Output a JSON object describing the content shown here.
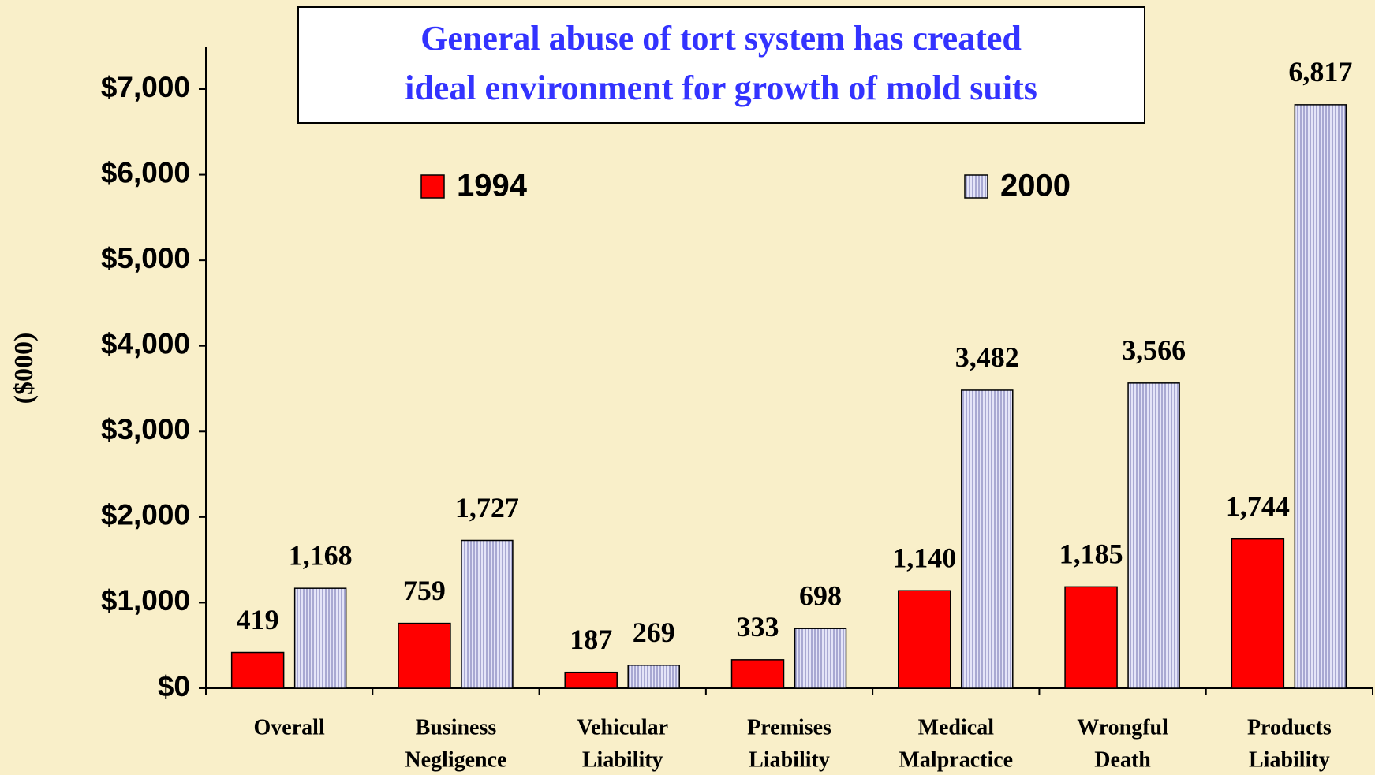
{
  "chart_data": {
    "type": "bar",
    "title": [
      "General abuse of tort system has created",
      "ideal environment for growth of mold suits"
    ],
    "y_label": "($000)",
    "categories": [
      [
        "Overall"
      ],
      [
        "Business",
        "Negligence"
      ],
      [
        "Vehicular",
        "Liability"
      ],
      [
        "Premises",
        "Liability"
      ],
      [
        "Medical",
        "Malpractice"
      ],
      [
        "Wrongful",
        "Death"
      ],
      [
        "Products",
        "Liability"
      ]
    ],
    "series": [
      {
        "name": "1994",
        "color": "#ff0000",
        "values": [
          419,
          759,
          187,
          333,
          1140,
          1185,
          1744
        ],
        "value_labels": [
          "419",
          "759",
          "187",
          "333",
          "1,140",
          "1,185",
          "1,744"
        ]
      },
      {
        "name": "2000",
        "color": "#c8c8f0",
        "values": [
          1168,
          1727,
          269,
          698,
          3482,
          3566,
          6817
        ],
        "value_labels": [
          "1,168",
          "1,727",
          "269",
          "698",
          "3,482",
          "3,566",
          "6,817"
        ]
      }
    ],
    "ylim": [
      0,
      7000
    ],
    "yticks": [
      {
        "value": 0,
        "label": "$0"
      },
      {
        "value": 1000,
        "label": "$1,000"
      },
      {
        "value": 2000,
        "label": "$2,000"
      },
      {
        "value": 3000,
        "label": "$3,000"
      },
      {
        "value": 4000,
        "label": "$4,000"
      },
      {
        "value": 5000,
        "label": "$5,000"
      },
      {
        "value": 6000,
        "label": "$6,000"
      },
      {
        "value": 7000,
        "label": "$7,000"
      }
    ]
  }
}
